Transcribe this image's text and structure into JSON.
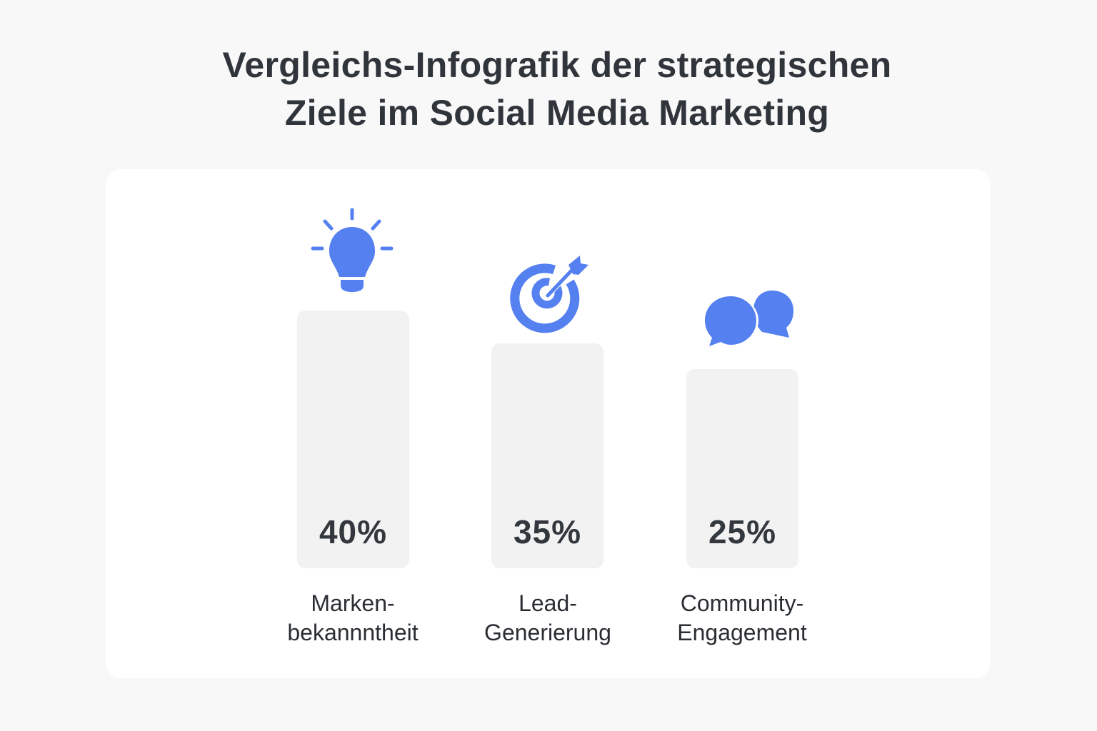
{
  "chart_data": {
    "type": "bar",
    "title": "Vergleichs-Infografik der strategischen Ziele im Social Media Marketing",
    "title_lines": [
      "Vergleichs-Infografik der strategischen",
      "Ziele im Social Media Marketing"
    ],
    "categories": [
      "Marken-bekannntheit",
      "Lead-Generierung",
      "Community-Engagement"
    ],
    "category_lines": [
      [
        "Marken-",
        "bekannntheit"
      ],
      [
        "Lead-",
        "Generierung"
      ],
      [
        "Community-",
        "Engagement"
      ]
    ],
    "values": [
      40,
      35,
      25
    ],
    "value_labels": [
      "40%",
      "35%",
      "25%"
    ],
    "unit": "%",
    "icons": [
      "lightbulb-icon",
      "target-arrow-icon",
      "chat-bubbles-icon"
    ],
    "xlabel": "",
    "ylabel": "",
    "grid": false,
    "colors": {
      "icon": "#5580f0",
      "bar": "#f2f2f2",
      "text": "#30353b",
      "background": "#f8f8f8",
      "card": "#ffffff"
    }
  }
}
